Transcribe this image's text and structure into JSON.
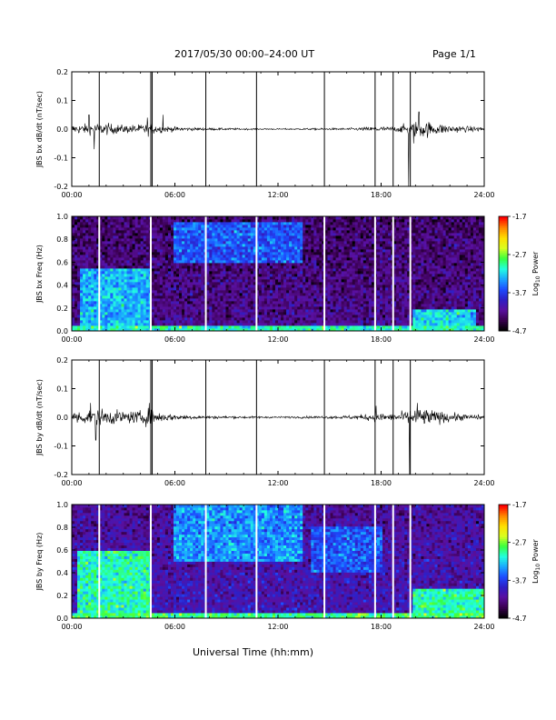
{
  "header": {
    "title": "2017/05/30  00:00–24:00 UT",
    "page": "Page 1/1"
  },
  "x_axis_title": "Universal Time (hh:mm)",
  "colorbar_label_prefix": "Log",
  "colorbar_label_sub": "10",
  "colorbar_label_suffix": " Power",
  "colors": {
    "trace": "#000000",
    "gap_line_timeseries": "#000000",
    "gap_line_spectrogram": "#ffffff",
    "colormap": [
      "#000000",
      "#3a0050",
      "#5a10a0",
      "#2e1fc6",
      "#1d4cff",
      "#1aa6ff",
      "#22ffe0",
      "#38ff40",
      "#d8ff20",
      "#ffe000",
      "#ff8800",
      "#ff0000"
    ]
  },
  "chart_data": [
    {
      "type": "line",
      "id": "bx-timeseries",
      "ylabel": "JBS bx dB/dt (nT/sec)",
      "xlim": [
        0,
        24
      ],
      "ylim": [
        -0.2,
        0.2
      ],
      "x_ticks": [
        0,
        6,
        12,
        18,
        24
      ],
      "x_tick_labels": [
        "00:00",
        "06:00",
        "12:00",
        "18:00",
        "24:00"
      ],
      "y_ticks": [
        -0.2,
        -0.1,
        0.0,
        0.1,
        0.2
      ],
      "y_tick_labels": [
        "-0.2",
        "-0.1",
        "0.0",
        "0.1",
        "0.2"
      ],
      "data_gaps_hours": [
        1.6,
        4.6,
        4.68,
        7.8,
        10.75,
        14.7,
        17.65,
        18.7,
        19.7
      ],
      "amplitude_envelope": {
        "hours": [
          0,
          1,
          2,
          3,
          4,
          4.5,
          5,
          6,
          7,
          8,
          10,
          12,
          14,
          16,
          17,
          17.8,
          18.5,
          19,
          19.5,
          20,
          20.5,
          21,
          22,
          23,
          24
        ],
        "amplitude": [
          0.015,
          0.018,
          0.02,
          0.014,
          0.016,
          0.022,
          0.014,
          0.008,
          0.005,
          0.004,
          0.003,
          0.002,
          0.003,
          0.004,
          0.006,
          0.01,
          0.008,
          0.01,
          0.02,
          0.028,
          0.03,
          0.022,
          0.014,
          0.01,
          0.008
        ]
      },
      "spikes": [
        {
          "hour": 1.0,
          "value": 0.05
        },
        {
          "hour": 1.3,
          "value": -0.07
        },
        {
          "hour": 4.4,
          "value": 0.04
        },
        {
          "hour": 5.3,
          "value": 0.05
        },
        {
          "hour": 19.6,
          "value": -0.22
        },
        {
          "hour": 20.2,
          "value": 0.06
        },
        {
          "hour": 19.9,
          "value": -0.05
        }
      ]
    },
    {
      "type": "heatmap",
      "id": "bx-spectrogram",
      "ylabel": "JBS bx Freq (Hz)",
      "xlim": [
        0,
        24
      ],
      "ylim": [
        0.0,
        1.0
      ],
      "x_ticks": [
        0,
        6,
        12,
        18,
        24
      ],
      "x_tick_labels": [
        "00:00",
        "06:00",
        "12:00",
        "18:00",
        "24:00"
      ],
      "y_ticks": [
        0.0,
        0.2,
        0.4,
        0.6,
        0.8,
        1.0
      ],
      "y_tick_labels": [
        "0.0",
        "0.2",
        "0.4",
        "0.6",
        "0.8",
        "1.0"
      ],
      "colorbar_range": [
        -4.7,
        -1.7
      ],
      "colorbar_ticks": [
        -4.7,
        -3.7,
        -2.7,
        -1.7
      ],
      "colorbar_tick_labels": [
        "-4.7",
        "-3.7",
        "-2.7",
        "-1.7"
      ],
      "data_gaps_hours": [
        1.6,
        4.6,
        7.8,
        10.75,
        14.7,
        17.65,
        18.7,
        19.7
      ],
      "background_log_power": -4.2,
      "features": [
        {
          "t0": 0.5,
          "t1": 4.6,
          "f0": 0.0,
          "f1": 0.55,
          "peak": -3.3
        },
        {
          "t0": 5.9,
          "t1": 13.5,
          "f0": 0.6,
          "f1": 0.95,
          "peak": -3.6
        },
        {
          "t0": 19.8,
          "t1": 23.5,
          "f0": 0.0,
          "f1": 0.18,
          "peak": -3.2
        },
        {
          "t0": 0.0,
          "t1": 24.0,
          "f0": 0.0,
          "f1": 0.04,
          "peak": -3.0
        }
      ]
    },
    {
      "type": "line",
      "id": "by-timeseries",
      "ylabel": "JBS by dB/dt (nT/sec)",
      "xlim": [
        0,
        24
      ],
      "ylim": [
        -0.2,
        0.2
      ],
      "x_ticks": [
        0,
        6,
        12,
        18,
        24
      ],
      "x_tick_labels": [
        "00:00",
        "06:00",
        "12:00",
        "18:00",
        "24:00"
      ],
      "y_ticks": [
        -0.2,
        -0.1,
        0.0,
        0.1,
        0.2
      ],
      "y_tick_labels": [
        "-0.2",
        "-0.1",
        "0.0",
        "0.1",
        "0.2"
      ],
      "data_gaps_hours": [
        1.6,
        4.6,
        4.68,
        7.8,
        10.75,
        14.7,
        17.65,
        18.7,
        19.7
      ],
      "amplitude_envelope": {
        "hours": [
          0,
          1,
          2,
          3,
          4,
          4.5,
          5,
          6,
          7,
          8,
          10,
          12,
          14,
          16,
          17,
          17.8,
          18.5,
          19,
          19.5,
          20,
          20.5,
          21,
          22,
          23,
          24
        ],
        "amplitude": [
          0.02,
          0.025,
          0.028,
          0.02,
          0.022,
          0.03,
          0.018,
          0.01,
          0.007,
          0.005,
          0.004,
          0.003,
          0.004,
          0.006,
          0.01,
          0.016,
          0.012,
          0.015,
          0.022,
          0.03,
          0.03,
          0.024,
          0.016,
          0.01,
          0.008
        ]
      },
      "spikes": [
        {
          "hour": 1.1,
          "value": 0.05
        },
        {
          "hour": 1.4,
          "value": -0.08
        },
        {
          "hour": 4.5,
          "value": 0.05
        },
        {
          "hour": 19.65,
          "value": -0.2
        },
        {
          "hour": 20.1,
          "value": 0.05
        },
        {
          "hour": 17.7,
          "value": 0.04
        }
      ]
    },
    {
      "type": "heatmap",
      "id": "by-spectrogram",
      "ylabel": "JBS by Freq (Hz)",
      "xlim": [
        0,
        24
      ],
      "ylim": [
        0.0,
        1.0
      ],
      "x_ticks": [
        0,
        6,
        12,
        18,
        24
      ],
      "x_tick_labels": [
        "00:00",
        "06:00",
        "12:00",
        "18:00",
        "24:00"
      ],
      "y_ticks": [
        0.0,
        0.2,
        0.4,
        0.6,
        0.8,
        1.0
      ],
      "y_tick_labels": [
        "0.0",
        "0.2",
        "0.4",
        "0.6",
        "0.8",
        "1.0"
      ],
      "colorbar_range": [
        -4.7,
        -1.7
      ],
      "colorbar_ticks": [
        -4.7,
        -3.7,
        -2.7,
        -1.7
      ],
      "colorbar_tick_labels": [
        "-4.7",
        "-3.7",
        "-2.7",
        "-1.7"
      ],
      "data_gaps_hours": [
        1.6,
        4.6,
        7.8,
        10.75,
        14.7,
        17.65,
        18.7,
        19.7
      ],
      "background_log_power": -4.0,
      "features": [
        {
          "t0": 0.3,
          "t1": 4.6,
          "f0": 0.0,
          "f1": 0.6,
          "peak": -3.0
        },
        {
          "t0": 5.9,
          "t1": 13.5,
          "f0": 0.5,
          "f1": 1.0,
          "peak": -3.4
        },
        {
          "t0": 14.0,
          "t1": 18.0,
          "f0": 0.4,
          "f1": 0.8,
          "peak": -3.6
        },
        {
          "t0": 19.8,
          "t1": 24.0,
          "f0": 0.0,
          "f1": 0.25,
          "peak": -3.0
        },
        {
          "t0": 0.0,
          "t1": 24.0,
          "f0": 0.0,
          "f1": 0.05,
          "peak": -2.9
        }
      ]
    }
  ]
}
